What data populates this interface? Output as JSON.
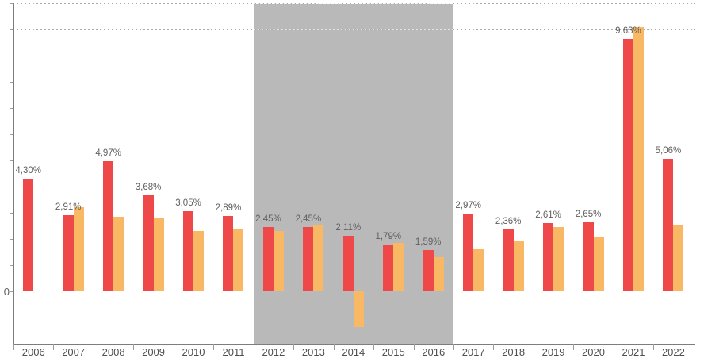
{
  "chart_data": {
    "type": "bar",
    "title": "",
    "categories": [
      "2006",
      "2007",
      "2008",
      "2009",
      "2010",
      "2011",
      "2012",
      "2013",
      "2014",
      "2015",
      "2016",
      "2017",
      "2018",
      "2019",
      "2020",
      "2021",
      "2022"
    ],
    "series": [
      {
        "name": "red-series",
        "color": "#ee4848",
        "values": [
          4.3,
          2.91,
          4.97,
          3.68,
          3.05,
          2.89,
          2.45,
          2.45,
          2.11,
          1.79,
          1.59,
          2.97,
          2.36,
          2.61,
          2.65,
          9.63,
          5.06
        ],
        "data_labels": [
          "4,30%",
          "2,91%",
          "4,97%",
          "3,68%",
          "3,05%",
          "2,89%",
          "2,45%",
          "2,45%",
          "2,11%",
          "1,79%",
          "1,59%",
          "2,97%",
          "2,36%",
          "2,61%",
          "2,65%",
          "9,63%",
          "5,06%"
        ]
      },
      {
        "name": "orange-series",
        "color": "#f9b863",
        "values": [
          null,
          3.2,
          2.85,
          2.8,
          2.3,
          2.4,
          2.3,
          2.55,
          -1.35,
          1.85,
          1.3,
          1.6,
          1.9,
          2.45,
          2.05,
          10.1,
          2.55
        ],
        "data_labels": []
      }
    ],
    "xlabel": "",
    "ylabel": "",
    "ylim": [
      -2,
      11
    ],
    "y_tick_step": 1,
    "zero_label": "0",
    "grid": "dashed horizontal gridlines only at selected values",
    "dashed_gridline_values": [
      11,
      10,
      9,
      -1
    ],
    "legend": "none",
    "highlight_band": {
      "from_category": "2012",
      "to_category": "2016",
      "color": "#b9b9b9"
    },
    "axis_color": "#7d7d7d",
    "tick_color": "#9c9c9c",
    "gridline_color": "#ababab",
    "data_label_color": "#5f5f5f",
    "category_label_color": "#4f4f4f"
  }
}
